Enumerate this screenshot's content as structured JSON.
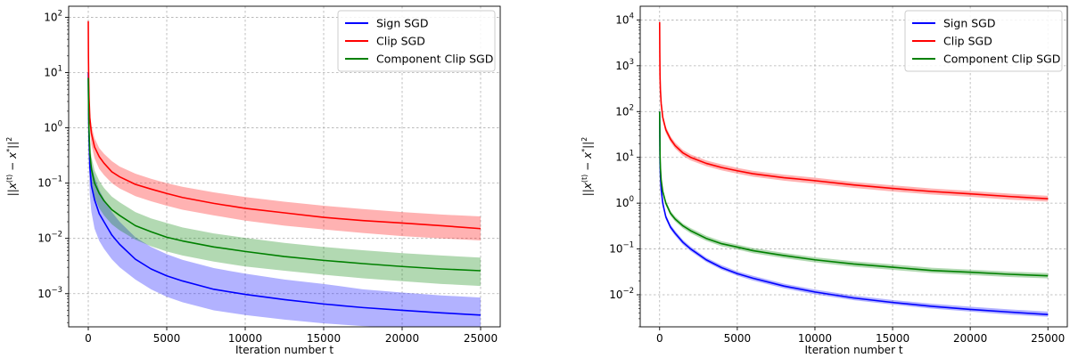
{
  "chart_data": [
    {
      "type": "line",
      "xlabel": "Iteration number t",
      "ylabel": "||x^(t) − x*||²",
      "xlim": [
        -1250,
        26250
      ],
      "ylim_log10": [
        -3.6,
        2.2
      ],
      "yscale": "log",
      "grid": true,
      "legend_position": "top-right",
      "x_ticks": [
        0,
        5000,
        10000,
        15000,
        20000,
        25000
      ],
      "x_tick_labels": [
        "0",
        "5000",
        "10000",
        "15000",
        "20000",
        "25000"
      ],
      "y_tick_exponents": [
        -3,
        -2,
        -1,
        0,
        1,
        2
      ],
      "series": [
        {
          "name": "Sign SGD",
          "color": "#0000ff",
          "x": [
            0,
            25,
            50,
            100,
            200,
            400,
            700,
            1000,
            1500,
            2000,
            3000,
            4000,
            5000,
            6000,
            8000,
            10000,
            12500,
            15000,
            17500,
            20000,
            22500,
            25000
          ],
          "mean": [
            10,
            1.5,
            0.6,
            0.2,
            0.09,
            0.05,
            0.028,
            0.02,
            0.0115,
            0.0078,
            0.0042,
            0.0028,
            0.0021,
            0.0017,
            0.0012,
            0.00097,
            0.00078,
            0.00065,
            0.00056,
            0.0005,
            0.00045,
            0.00041
          ],
          "upper": [
            12,
            2.5,
            1.2,
            0.5,
            0.22,
            0.13,
            0.075,
            0.052,
            0.03,
            0.02,
            0.0105,
            0.007,
            0.0052,
            0.0041,
            0.0029,
            0.0023,
            0.0018,
            0.0015,
            0.0012,
            0.00105,
            0.00093,
            0.00085
          ],
          "lower": [
            8,
            0.4,
            0.15,
            0.06,
            0.03,
            0.015,
            0.009,
            0.0065,
            0.0042,
            0.003,
            0.0018,
            0.0012,
            0.00088,
            0.0007,
            0.0005,
            0.00041,
            0.00034,
            0.00029,
            0.00026,
            0.00024,
            0.000225,
            0.000215
          ]
        },
        {
          "name": "Clip SGD",
          "color": "#ff0000",
          "x": [
            0,
            10,
            25,
            50,
            100,
            200,
            400,
            700,
            1000,
            1500,
            2000,
            3000,
            4000,
            5000,
            6000,
            8000,
            10000,
            12500,
            15000,
            17500,
            20000,
            22500,
            25000
          ],
          "mean": [
            85,
            20,
            8,
            3.5,
            1.5,
            0.8,
            0.45,
            0.3,
            0.23,
            0.16,
            0.13,
            0.095,
            0.078,
            0.065,
            0.055,
            0.043,
            0.035,
            0.029,
            0.024,
            0.021,
            0.019,
            0.017,
            0.015
          ],
          "upper": [
            100,
            25,
            10,
            4.5,
            2,
            1.1,
            0.65,
            0.43,
            0.34,
            0.25,
            0.2,
            0.148,
            0.12,
            0.1,
            0.086,
            0.068,
            0.056,
            0.046,
            0.039,
            0.034,
            0.03,
            0.027,
            0.025
          ],
          "lower": [
            70,
            15,
            6,
            2.5,
            1,
            0.5,
            0.28,
            0.18,
            0.14,
            0.1,
            0.08,
            0.058,
            0.047,
            0.039,
            0.033,
            0.026,
            0.021,
            0.017,
            0.0145,
            0.0125,
            0.011,
            0.01,
            0.0092
          ]
        },
        {
          "name": "Component Clip SGD",
          "color": "#008000",
          "x": [
            0,
            25,
            50,
            100,
            200,
            400,
            700,
            1000,
            1500,
            2000,
            3000,
            4000,
            5000,
            6000,
            8000,
            10000,
            12500,
            15000,
            17500,
            20000,
            22500,
            25000
          ],
          "mean": [
            8,
            2,
            0.9,
            0.35,
            0.18,
            0.1,
            0.065,
            0.048,
            0.033,
            0.026,
            0.017,
            0.0132,
            0.0105,
            0.009,
            0.007,
            0.0058,
            0.0047,
            0.004,
            0.0035,
            0.0031,
            0.0028,
            0.0026
          ],
          "upper": [
            10,
            3,
            1.4,
            0.6,
            0.3,
            0.17,
            0.11,
            0.082,
            0.057,
            0.045,
            0.03,
            0.023,
            0.019,
            0.0158,
            0.0123,
            0.0102,
            0.0083,
            0.007,
            0.0061,
            0.0054,
            0.0049,
            0.0045
          ],
          "lower": [
            6,
            1.2,
            0.5,
            0.2,
            0.1,
            0.055,
            0.035,
            0.026,
            0.018,
            0.014,
            0.0095,
            0.0072,
            0.0058,
            0.0049,
            0.0038,
            0.0031,
            0.0026,
            0.0022,
            0.0019,
            0.00168,
            0.0015,
            0.00138
          ]
        }
      ]
    },
    {
      "type": "line",
      "xlabel": "Iteration number t",
      "ylabel": "||x^(t) − x*||²",
      "xlim": [
        -1250,
        26250
      ],
      "ylim_log10": [
        -2.7,
        4.3
      ],
      "yscale": "log",
      "grid": true,
      "legend_position": "top-right",
      "x_ticks": [
        0,
        5000,
        10000,
        15000,
        20000,
        25000
      ],
      "x_tick_labels": [
        "0",
        "5000",
        "10000",
        "15000",
        "20000",
        "25000"
      ],
      "y_tick_exponents": [
        -2,
        -1,
        0,
        1,
        2,
        3,
        4
      ],
      "series": [
        {
          "name": "Sign SGD",
          "color": "#0000ff",
          "x": [
            0,
            25,
            50,
            100,
            200,
            400,
            700,
            1000,
            1500,
            2000,
            3000,
            4000,
            5000,
            6000,
            8000,
            10000,
            12500,
            15000,
            17500,
            20000,
            22500,
            25000
          ],
          "mean": [
            100,
            8,
            4,
            2,
            1,
            0.5,
            0.3,
            0.22,
            0.14,
            0.1,
            0.058,
            0.039,
            0.029,
            0.023,
            0.0155,
            0.0115,
            0.0085,
            0.0068,
            0.0056,
            0.0048,
            0.0042,
            0.0037
          ],
          "upper": [
            110,
            9,
            4.5,
            2.3,
            1.15,
            0.57,
            0.34,
            0.25,
            0.158,
            0.112,
            0.065,
            0.044,
            0.0325,
            0.026,
            0.0175,
            0.013,
            0.0096,
            0.0077,
            0.0064,
            0.0055,
            0.0048,
            0.0043
          ],
          "lower": [
            90,
            7,
            3.5,
            1.75,
            0.88,
            0.44,
            0.265,
            0.195,
            0.124,
            0.089,
            0.052,
            0.035,
            0.026,
            0.0205,
            0.0138,
            0.0102,
            0.0076,
            0.0061,
            0.005,
            0.0043,
            0.0037,
            0.0033
          ]
        },
        {
          "name": "Clip SGD",
          "color": "#ff0000",
          "x": [
            0,
            10,
            25,
            50,
            100,
            200,
            400,
            700,
            1000,
            1500,
            2000,
            3000,
            4000,
            5000,
            6000,
            8000,
            10000,
            12500,
            15000,
            17500,
            20000,
            22500,
            25000
          ],
          "mean": [
            9000,
            2000,
            600,
            300,
            150,
            75,
            40,
            25,
            18,
            12.5,
            10,
            7.4,
            6,
            5.1,
            4.4,
            3.6,
            3.1,
            2.5,
            2.1,
            1.8,
            1.6,
            1.4,
            1.25
          ],
          "upper": [
            10000,
            2400,
            700,
            350,
            175,
            88,
            47,
            29,
            21,
            14.5,
            11.6,
            8.6,
            7,
            5.9,
            5.1,
            4.2,
            3.6,
            2.9,
            2.45,
            2.1,
            1.85,
            1.62,
            1.45
          ],
          "lower": [
            8000,
            1600,
            500,
            250,
            125,
            62,
            34,
            21.5,
            15.5,
            10.8,
            8.6,
            6.4,
            5.2,
            4.4,
            3.8,
            3.1,
            2.65,
            2.15,
            1.8,
            1.55,
            1.38,
            1.2,
            1.08
          ]
        },
        {
          "name": "Component Clip SGD",
          "color": "#008000",
          "x": [
            0,
            25,
            50,
            100,
            200,
            400,
            700,
            1000,
            1500,
            2000,
            3000,
            4000,
            5000,
            6000,
            8000,
            10000,
            12500,
            15000,
            17500,
            20000,
            22500,
            25000
          ],
          "mean": [
            100,
            12,
            6,
            3.2,
            1.8,
            1,
            0.6,
            0.45,
            0.32,
            0.25,
            0.17,
            0.13,
            0.11,
            0.092,
            0.072,
            0.058,
            0.047,
            0.04,
            0.034,
            0.031,
            0.028,
            0.026
          ],
          "upper": [
            110,
            13.5,
            6.8,
            3.6,
            2.05,
            1.14,
            0.68,
            0.51,
            0.36,
            0.285,
            0.194,
            0.148,
            0.125,
            0.105,
            0.082,
            0.066,
            0.054,
            0.046,
            0.039,
            0.0355,
            0.032,
            0.0298
          ],
          "lower": [
            90,
            10.5,
            5.2,
            2.8,
            1.58,
            0.88,
            0.53,
            0.4,
            0.282,
            0.22,
            0.15,
            0.114,
            0.097,
            0.081,
            0.063,
            0.051,
            0.041,
            0.035,
            0.0298,
            0.0271,
            0.0245,
            0.0228
          ]
        }
      ]
    }
  ]
}
